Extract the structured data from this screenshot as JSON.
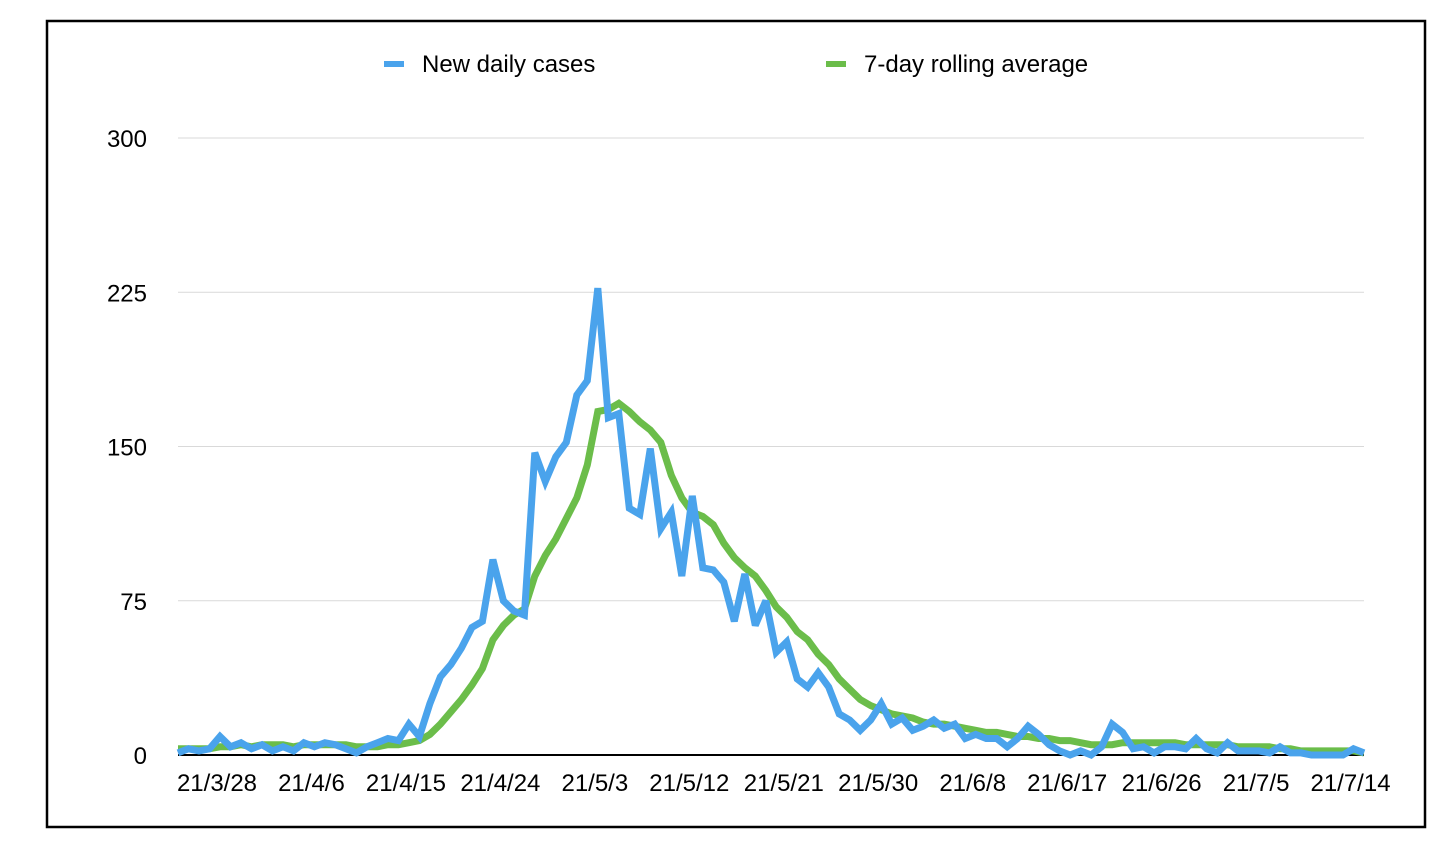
{
  "chart_data": {
    "type": "line",
    "title": "",
    "xlabel": "",
    "ylabel": "",
    "ylim": [
      0,
      300
    ],
    "yticks": [
      0,
      75,
      150,
      225,
      300
    ],
    "grid": true,
    "legend_position": "top",
    "x_tick_labels": [
      "21/3/28",
      "21/4/6",
      "21/4/15",
      "21/4/24",
      "21/5/3",
      "21/5/12",
      "21/5/21",
      "21/5/30",
      "21/6/8",
      "21/6/17",
      "21/6/26",
      "21/7/5",
      "21/7/14"
    ],
    "series": [
      {
        "name": "New daily cases",
        "color": "#4aa3ec",
        "values": [
          1,
          3,
          2,
          3,
          9,
          4,
          6,
          3,
          5,
          2,
          4,
          2,
          6,
          4,
          6,
          5,
          3,
          1,
          4,
          6,
          8,
          7,
          15,
          9,
          25,
          38,
          44,
          52,
          62,
          65,
          95,
          75,
          70,
          68,
          147,
          133,
          145,
          152,
          175,
          182,
          227,
          164,
          166,
          120,
          117,
          149,
          110,
          118,
          87,
          126,
          91,
          90,
          84,
          65,
          88,
          63,
          75,
          50,
          55,
          37,
          33,
          40,
          33,
          20,
          17,
          12,
          17,
          25,
          15,
          18,
          12,
          14,
          17,
          13,
          15,
          8,
          10,
          8,
          8,
          4,
          8,
          14,
          10,
          5,
          2,
          0,
          2,
          0,
          4,
          15,
          11,
          3,
          4,
          1,
          4,
          4,
          3,
          8,
          3,
          1,
          6,
          2,
          2,
          2,
          1,
          4,
          1,
          1,
          0,
          0,
          0,
          0,
          3,
          1
        ],
        "labels_shown": false
      },
      {
        "name": "7-day rolling average",
        "color": "#6bbd4a",
        "values": [
          3,
          3,
          3,
          3,
          4,
          4,
          5,
          4,
          5,
          5,
          5,
          4,
          5,
          5,
          5,
          5,
          5,
          4,
          4,
          4,
          5,
          5,
          6,
          7,
          10,
          15,
          21,
          27,
          34,
          42,
          56,
          63,
          68,
          71,
          87,
          97,
          105,
          115,
          125,
          141,
          167,
          168,
          171,
          167,
          162,
          158,
          152,
          136,
          125,
          118,
          116,
          112,
          103,
          96,
          91,
          87,
          80,
          72,
          67,
          60,
          56,
          49,
          44,
          37,
          32,
          27,
          24,
          22,
          20,
          19,
          18,
          16,
          15,
          15,
          14,
          13,
          12,
          11,
          11,
          10,
          9,
          9,
          8,
          8,
          7,
          7,
          6,
          5,
          5,
          5,
          6,
          6,
          6,
          6,
          6,
          6,
          5,
          5,
          5,
          5,
          5,
          4,
          4,
          4,
          4,
          3,
          3,
          2,
          2,
          2,
          2,
          2,
          2,
          1
        ]
      }
    ]
  }
}
